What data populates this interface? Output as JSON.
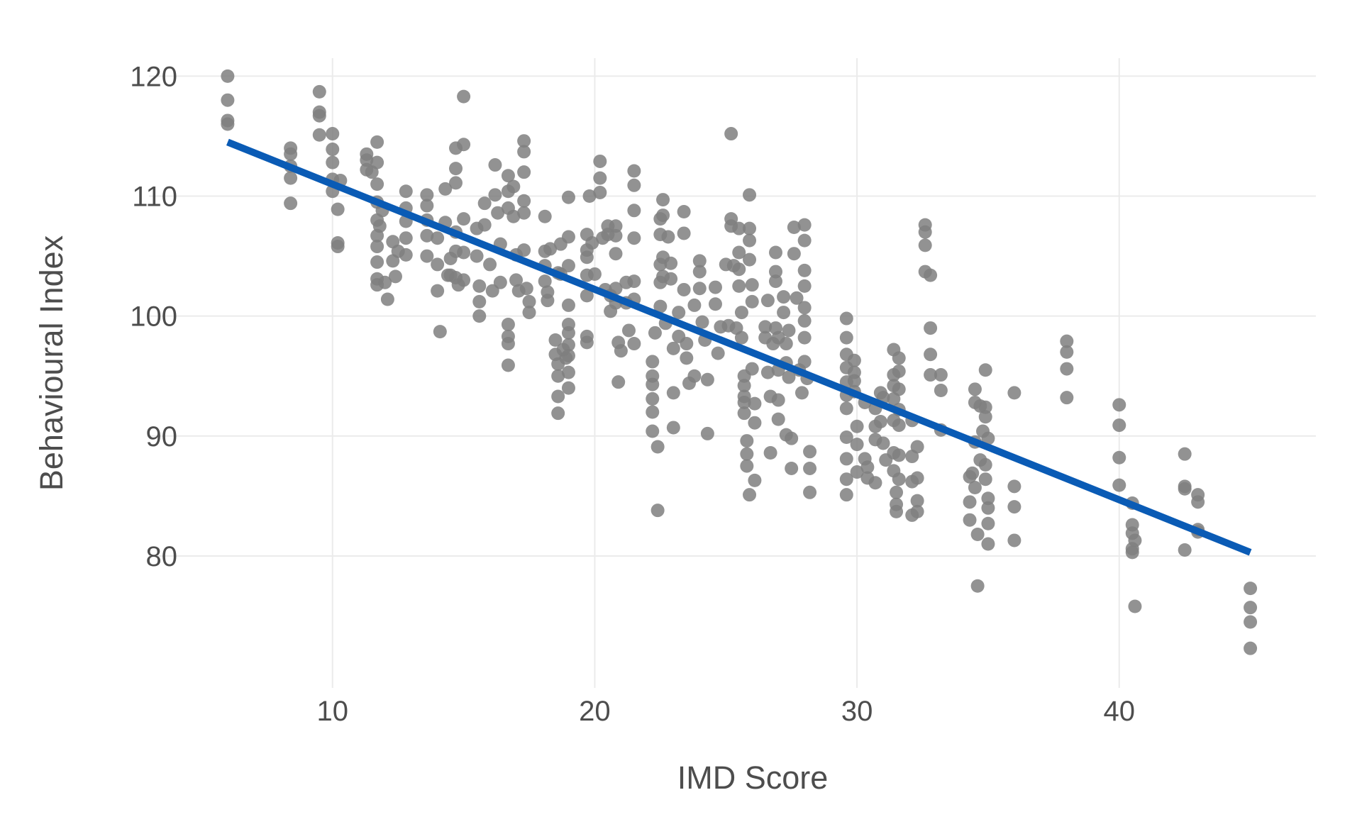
{
  "chart_data": {
    "type": "scatter",
    "title": "",
    "xlabel": "IMD Score",
    "ylabel": "Behavioural Index",
    "xlim": [
      3,
      47.5
    ],
    "ylim": [
      69,
      121.5
    ],
    "x_ticks": [
      10,
      20,
      30,
      40
    ],
    "y_ticks": [
      80,
      90,
      100,
      110,
      120
    ],
    "grid": true,
    "legend": "none",
    "point_color": "#7f7f7f",
    "line_color": "#0a5bb5",
    "trend_line": {
      "x": [
        6,
        45
      ],
      "y": [
        114.5,
        80.3
      ]
    },
    "points": [
      [
        6,
        120
      ],
      [
        6,
        118
      ],
      [
        6,
        116.3
      ],
      [
        6,
        116
      ],
      [
        8.4,
        114
      ],
      [
        8.4,
        113.5
      ],
      [
        8.4,
        112.5
      ],
      [
        8.4,
        111.5
      ],
      [
        8.4,
        109.4
      ],
      [
        9.5,
        118.7
      ],
      [
        9.5,
        117
      ],
      [
        9.5,
        116.7
      ],
      [
        9.5,
        115.1
      ],
      [
        10,
        115.2
      ],
      [
        10,
        113.9
      ],
      [
        10,
        112.8
      ],
      [
        10,
        111.4
      ],
      [
        10,
        110.4
      ],
      [
        10.2,
        108.9
      ],
      [
        10.2,
        106.1
      ],
      [
        10.2,
        105.8
      ],
      [
        10.3,
        111.3
      ],
      [
        11.3,
        113.5
      ],
      [
        11.3,
        113
      ],
      [
        11.3,
        112.2
      ],
      [
        11.5,
        112
      ],
      [
        11.7,
        114.5
      ],
      [
        11.7,
        112.8
      ],
      [
        11.7,
        111
      ],
      [
        11.7,
        109.5
      ],
      [
        11.7,
        108
      ],
      [
        11.7,
        106.7
      ],
      [
        11.7,
        105.8
      ],
      [
        11.7,
        104.5
      ],
      [
        11.7,
        103.1
      ],
      [
        11.7,
        102.6
      ],
      [
        11.8,
        107.5
      ],
      [
        11.9,
        108.8
      ],
      [
        12,
        102.8
      ],
      [
        12.1,
        101.4
      ],
      [
        12.3,
        106.2
      ],
      [
        12.3,
        104.6
      ],
      [
        12.4,
        103.3
      ],
      [
        12.5,
        105.4
      ],
      [
        12.8,
        110.4
      ],
      [
        12.8,
        109
      ],
      [
        12.8,
        107.9
      ],
      [
        12.8,
        106.5
      ],
      [
        12.8,
        105.1
      ],
      [
        13.6,
        110.1
      ],
      [
        13.6,
        109.2
      ],
      [
        13.6,
        108
      ],
      [
        13.6,
        106.7
      ],
      [
        13.6,
        105
      ],
      [
        14,
        106.5
      ],
      [
        14,
        104.3
      ],
      [
        14,
        102.1
      ],
      [
        14.1,
        98.7
      ],
      [
        14.3,
        110.6
      ],
      [
        14.3,
        107.8
      ],
      [
        14.4,
        103.4
      ],
      [
        14.7,
        112.3
      ],
      [
        14.7,
        111.1
      ],
      [
        14.7,
        114
      ],
      [
        14.7,
        107
      ],
      [
        14.7,
        105.4
      ],
      [
        14.7,
        103.2
      ],
      [
        14.8,
        102.6
      ],
      [
        15,
        118.3
      ],
      [
        15,
        114.3
      ],
      [
        15,
        108.1
      ],
      [
        15,
        105.3
      ],
      [
        15,
        103
      ],
      [
        14.5,
        104.8
      ],
      [
        14.5,
        103.4
      ],
      [
        15.5,
        107.3
      ],
      [
        15.5,
        105
      ],
      [
        15.6,
        102.5
      ],
      [
        15.6,
        101.2
      ],
      [
        15.6,
        100
      ],
      [
        15.8,
        109.4
      ],
      [
        15.8,
        107.6
      ],
      [
        16,
        104.3
      ],
      [
        16.1,
        102.1
      ],
      [
        16.2,
        112.6
      ],
      [
        16.2,
        110.1
      ],
      [
        16.3,
        108.6
      ],
      [
        16.4,
        106
      ],
      [
        16.4,
        102.8
      ],
      [
        16.7,
        111.7
      ],
      [
        16.7,
        110.4
      ],
      [
        16.7,
        109
      ],
      [
        16.7,
        99.3
      ],
      [
        16.7,
        98.3
      ],
      [
        16.7,
        97.7
      ],
      [
        16.7,
        95.9
      ],
      [
        16.9,
        110.8
      ],
      [
        16.9,
        108.3
      ],
      [
        17,
        105.1
      ],
      [
        17,
        103
      ],
      [
        17.1,
        102.1
      ],
      [
        17.3,
        114.6
      ],
      [
        17.3,
        113.7
      ],
      [
        17.3,
        112
      ],
      [
        17.3,
        109.6
      ],
      [
        17.3,
        108.6
      ],
      [
        17.3,
        105.5
      ],
      [
        17.4,
        102.3
      ],
      [
        17.5,
        101.2
      ],
      [
        17.5,
        100.3
      ],
      [
        18.1,
        108.3
      ],
      [
        18.1,
        105.4
      ],
      [
        18.1,
        104.2
      ],
      [
        18.1,
        102.9
      ],
      [
        18.2,
        102
      ],
      [
        18.2,
        101.3
      ],
      [
        18.3,
        105.6
      ],
      [
        18.5,
        98
      ],
      [
        18.5,
        96.8
      ],
      [
        18.6,
        96
      ],
      [
        18.6,
        95
      ],
      [
        18.6,
        93.3
      ],
      [
        18.6,
        91.9
      ],
      [
        18.6,
        103.6
      ],
      [
        18.7,
        106
      ],
      [
        18.7,
        103.5
      ],
      [
        18.8,
        97.2
      ],
      [
        18.9,
        96.5
      ],
      [
        19,
        109.9
      ],
      [
        19,
        106.6
      ],
      [
        19,
        104.2
      ],
      [
        19,
        100.9
      ],
      [
        19,
        99.3
      ],
      [
        19,
        98.6
      ],
      [
        19,
        97.6
      ],
      [
        19,
        96.7
      ],
      [
        19,
        95.3
      ],
      [
        19,
        94
      ],
      [
        19.7,
        106.8
      ],
      [
        19.7,
        105.5
      ],
      [
        19.7,
        104.9
      ],
      [
        19.7,
        103.4
      ],
      [
        19.7,
        101.7
      ],
      [
        19.7,
        98.3
      ],
      [
        19.7,
        97.8
      ],
      [
        19.8,
        110
      ],
      [
        19.9,
        106.1
      ],
      [
        20,
        103.5
      ],
      [
        20.2,
        112.9
      ],
      [
        20.2,
        111.5
      ],
      [
        20.2,
        110.3
      ],
      [
        20.3,
        106.5
      ],
      [
        20.4,
        102.2
      ],
      [
        20.5,
        107.5
      ],
      [
        20.5,
        106.8
      ],
      [
        20.6,
        101.7
      ],
      [
        20.6,
        100.4
      ],
      [
        20.8,
        107.5
      ],
      [
        20.8,
        106.7
      ],
      [
        20.8,
        105.2
      ],
      [
        20.8,
        102.3
      ],
      [
        20.8,
        101.1
      ],
      [
        20.9,
        97.8
      ],
      [
        20.9,
        94.5
      ],
      [
        21,
        97.1
      ],
      [
        21.2,
        102.8
      ],
      [
        21.2,
        101.1
      ],
      [
        21.3,
        98.8
      ],
      [
        21.5,
        112.1
      ],
      [
        21.5,
        110.9
      ],
      [
        21.5,
        108.8
      ],
      [
        21.5,
        106.5
      ],
      [
        21.5,
        102.9
      ],
      [
        21.5,
        101.4
      ],
      [
        21.5,
        97.7
      ],
      [
        22.2,
        96.2
      ],
      [
        22.2,
        95
      ],
      [
        22.2,
        94.3
      ],
      [
        22.2,
        93.1
      ],
      [
        22.2,
        92
      ],
      [
        22.2,
        90.4
      ],
      [
        22.3,
        98.6
      ],
      [
        22.4,
        89.1
      ],
      [
        22.4,
        83.8
      ],
      [
        22.5,
        108.1
      ],
      [
        22.5,
        106.8
      ],
      [
        22.5,
        104.3
      ],
      [
        22.5,
        102.8
      ],
      [
        22.5,
        100.8
      ],
      [
        22.6,
        109.7
      ],
      [
        22.6,
        108.4
      ],
      [
        22.6,
        104.9
      ],
      [
        22.6,
        103.3
      ],
      [
        22.7,
        99.4
      ],
      [
        22.8,
        106.6
      ],
      [
        22.9,
        104.4
      ],
      [
        22.9,
        103.1
      ],
      [
        23,
        90.7
      ],
      [
        23,
        93.6
      ],
      [
        23,
        97.3
      ],
      [
        23.2,
        100.3
      ],
      [
        23.2,
        98.3
      ],
      [
        23.4,
        108.7
      ],
      [
        23.4,
        106.9
      ],
      [
        23.4,
        102.2
      ],
      [
        23.5,
        97.7
      ],
      [
        23.5,
        96.5
      ],
      [
        23.6,
        94.4
      ],
      [
        23.8,
        95
      ],
      [
        23.8,
        100.9
      ],
      [
        24,
        104.6
      ],
      [
        24,
        103.7
      ],
      [
        24,
        102.3
      ],
      [
        24.1,
        99.5
      ],
      [
        24.2,
        98
      ],
      [
        24.3,
        94.7
      ],
      [
        24.3,
        90.2
      ],
      [
        24.6,
        102.4
      ],
      [
        24.6,
        101
      ],
      [
        24.7,
        96.9
      ],
      [
        24.8,
        99.1
      ],
      [
        25,
        104.3
      ],
      [
        25.1,
        99.2
      ],
      [
        25.2,
        115.2
      ],
      [
        25.2,
        108.1
      ],
      [
        25.2,
        107.5
      ],
      [
        25.3,
        104.2
      ],
      [
        25.4,
        99
      ],
      [
        25.5,
        107.3
      ],
      [
        25.5,
        105.3
      ],
      [
        25.5,
        103.9
      ],
      [
        25.5,
        102.5
      ],
      [
        25.6,
        100.3
      ],
      [
        25.6,
        98.2
      ],
      [
        25.7,
        95
      ],
      [
        25.7,
        94.2
      ],
      [
        25.7,
        93.3
      ],
      [
        25.7,
        92.8
      ],
      [
        25.7,
        91.9
      ],
      [
        25.8,
        89.6
      ],
      [
        25.8,
        88.5
      ],
      [
        25.8,
        87.5
      ],
      [
        25.9,
        85.1
      ],
      [
        25.9,
        110.1
      ],
      [
        25.9,
        107.3
      ],
      [
        25.9,
        106.3
      ],
      [
        25.9,
        104.7
      ],
      [
        26,
        102.6
      ],
      [
        26,
        101.2
      ],
      [
        26,
        95.6
      ],
      [
        26.1,
        92.7
      ],
      [
        26.1,
        91.1
      ],
      [
        26.1,
        86.3
      ],
      [
        26.5,
        99.1
      ],
      [
        26.5,
        98.2
      ],
      [
        26.6,
        101.3
      ],
      [
        26.6,
        95.3
      ],
      [
        26.7,
        93.3
      ],
      [
        26.7,
        88.6
      ],
      [
        26.8,
        97.7
      ],
      [
        26.9,
        105.3
      ],
      [
        26.9,
        103.7
      ],
      [
        26.9,
        102.9
      ],
      [
        26.9,
        99
      ],
      [
        27,
        98.2
      ],
      [
        27,
        95.5
      ],
      [
        27,
        93
      ],
      [
        27,
        91.4
      ],
      [
        27.2,
        101.6
      ],
      [
        27.2,
        100.3
      ],
      [
        27.3,
        97.7
      ],
      [
        27.3,
        96.1
      ],
      [
        27.3,
        90.1
      ],
      [
        27.4,
        98.8
      ],
      [
        27.4,
        94.9
      ],
      [
        27.5,
        89.8
      ],
      [
        27.5,
        87.3
      ],
      [
        27.6,
        107.4
      ],
      [
        27.6,
        105.2
      ],
      [
        27.7,
        101.5
      ],
      [
        27.8,
        95.5
      ],
      [
        27.9,
        93.6
      ],
      [
        28,
        107.6
      ],
      [
        28,
        106.3
      ],
      [
        28,
        103.8
      ],
      [
        28,
        102.5
      ],
      [
        28,
        100.7
      ],
      [
        28,
        99.6
      ],
      [
        28,
        98.2
      ],
      [
        28,
        96.2
      ],
      [
        28.1,
        94.8
      ],
      [
        28.2,
        88.7
      ],
      [
        28.2,
        87.3
      ],
      [
        28.2,
        85.3
      ],
      [
        29.6,
        99.8
      ],
      [
        29.6,
        98.2
      ],
      [
        29.6,
        96.8
      ],
      [
        29.6,
        95.7
      ],
      [
        29.6,
        94.5
      ],
      [
        29.6,
        93.4
      ],
      [
        29.6,
        92.3
      ],
      [
        29.6,
        89.9
      ],
      [
        29.6,
        88.1
      ],
      [
        29.6,
        86.4
      ],
      [
        29.6,
        85.1
      ],
      [
        29.9,
        96.3
      ],
      [
        29.9,
        95.3
      ],
      [
        29.9,
        94.6
      ],
      [
        29.9,
        93.7
      ],
      [
        30,
        90.8
      ],
      [
        30,
        89.3
      ],
      [
        30,
        87
      ],
      [
        30.3,
        92.8
      ],
      [
        30.3,
        88.1
      ],
      [
        30.4,
        87.4
      ],
      [
        30.4,
        86.5
      ],
      [
        30.7,
        92.3
      ],
      [
        30.7,
        90.8
      ],
      [
        30.7,
        89.7
      ],
      [
        30.7,
        86.1
      ],
      [
        30.9,
        93.6
      ],
      [
        30.9,
        91.2
      ],
      [
        31,
        93.2
      ],
      [
        31,
        89.4
      ],
      [
        31.1,
        88
      ],
      [
        31.4,
        97.2
      ],
      [
        31.4,
        95.1
      ],
      [
        31.4,
        94.2
      ],
      [
        31.4,
        93.1
      ],
      [
        31.4,
        91.3
      ],
      [
        31.4,
        88.6
      ],
      [
        31.4,
        87.1
      ],
      [
        31.5,
        85.3
      ],
      [
        31.5,
        84.3
      ],
      [
        31.5,
        83.7
      ],
      [
        31.6,
        96.5
      ],
      [
        31.6,
        95.4
      ],
      [
        31.6,
        93.9
      ],
      [
        31.6,
        92.2
      ],
      [
        31.6,
        90.9
      ],
      [
        31.6,
        88.4
      ],
      [
        31.6,
        86.4
      ],
      [
        32.1,
        91.3
      ],
      [
        32.1,
        88.3
      ],
      [
        32.1,
        86.2
      ],
      [
        32.1,
        83.4
      ],
      [
        32.3,
        89.1
      ],
      [
        32.3,
        86.5
      ],
      [
        32.3,
        84.6
      ],
      [
        32.3,
        83.7
      ],
      [
        32.6,
        107.6
      ],
      [
        32.6,
        107
      ],
      [
        32.6,
        105.9
      ],
      [
        32.6,
        103.7
      ],
      [
        32.8,
        103.4
      ],
      [
        32.8,
        99
      ],
      [
        32.8,
        96.8
      ],
      [
        32.8,
        95.1
      ],
      [
        33.2,
        95.1
      ],
      [
        33.2,
        93.8
      ],
      [
        33.2,
        90.5
      ],
      [
        34.3,
        86.6
      ],
      [
        34.3,
        84.5
      ],
      [
        34.3,
        83
      ],
      [
        34.4,
        86.9
      ],
      [
        34.5,
        93.9
      ],
      [
        34.5,
        92.8
      ],
      [
        34.5,
        89.5
      ],
      [
        34.5,
        85.7
      ],
      [
        34.6,
        81.8
      ],
      [
        34.6,
        77.5
      ],
      [
        34.7,
        92.5
      ],
      [
        34.7,
        88
      ],
      [
        34.8,
        90.4
      ],
      [
        34.9,
        95.5
      ],
      [
        34.9,
        92.4
      ],
      [
        34.9,
        91.6
      ],
      [
        34.9,
        87.6
      ],
      [
        34.9,
        86.4
      ],
      [
        35,
        89.8
      ],
      [
        35,
        84.8
      ],
      [
        35,
        84
      ],
      [
        35,
        82.7
      ],
      [
        35,
        81
      ],
      [
        36,
        93.6
      ],
      [
        36,
        85.8
      ],
      [
        36,
        84.1
      ],
      [
        36,
        81.3
      ],
      [
        38,
        97.9
      ],
      [
        38,
        97
      ],
      [
        38,
        95.6
      ],
      [
        38,
        93.2
      ],
      [
        40,
        92.6
      ],
      [
        40,
        90.9
      ],
      [
        40,
        88.2
      ],
      [
        40,
        85.9
      ],
      [
        40.5,
        84.4
      ],
      [
        40.5,
        82.6
      ],
      [
        40.5,
        81.9
      ],
      [
        40.6,
        81.3
      ],
      [
        40.5,
        80.6
      ],
      [
        40.5,
        80.3
      ],
      [
        40.6,
        75.8
      ],
      [
        42.5,
        88.5
      ],
      [
        42.5,
        85.8
      ],
      [
        42.5,
        85.6
      ],
      [
        42.5,
        80.5
      ],
      [
        43,
        85.1
      ],
      [
        43,
        84.5
      ],
      [
        43,
        82.2
      ],
      [
        43,
        82
      ],
      [
        45,
        77.3
      ],
      [
        45,
        75.7
      ],
      [
        45,
        74.5
      ],
      [
        45,
        72.3
      ]
    ]
  }
}
